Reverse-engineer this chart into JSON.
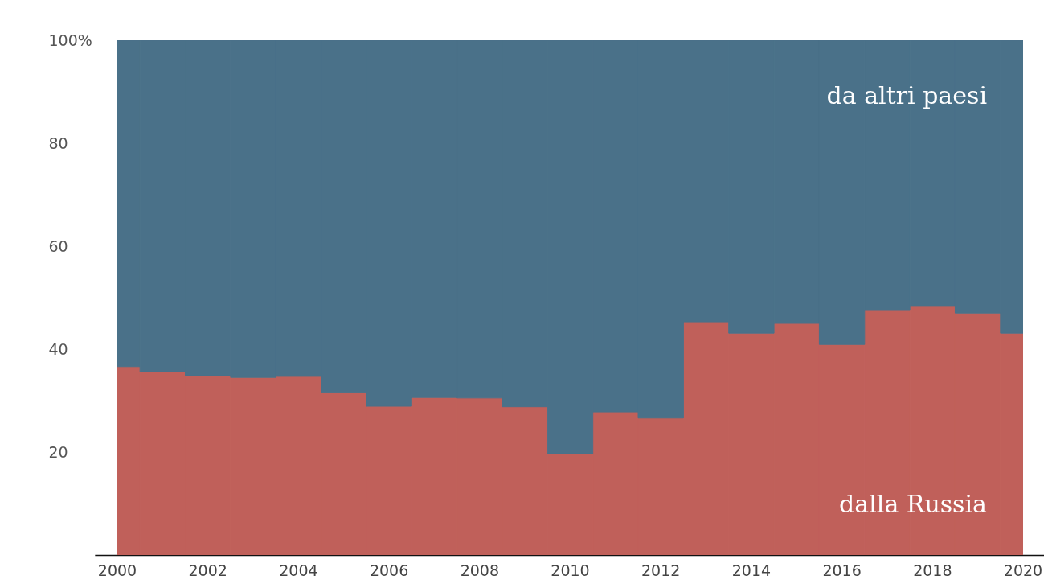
{
  "chart_data": {
    "type": "bar",
    "stacked": true,
    "categories": [
      "2000",
      null,
      "2002",
      null,
      "2004",
      null,
      "2006",
      null,
      "2008",
      null,
      "2010",
      null,
      "2012",
      null,
      "2014",
      null,
      "2016",
      null,
      "2018",
      null,
      "2020"
    ],
    "series": [
      {
        "name": "dalla Russia",
        "color": "#c0605a",
        "values": [
          36.6,
          35.6,
          34.8,
          34.5,
          34.7,
          31.6,
          28.9,
          30.6,
          30.5,
          28.8,
          19.7,
          27.8,
          26.6,
          45.3,
          43.1,
          45.0,
          40.9,
          47.5,
          48.3,
          47.0,
          43.1
        ]
      },
      {
        "name": "da altri paesi",
        "color": "#4a7189",
        "values": [
          63.4,
          64.4,
          65.2,
          65.5,
          65.3,
          68.4,
          71.1,
          69.4,
          69.5,
          71.2,
          80.3,
          72.2,
          73.4,
          54.7,
          56.9,
          55.0,
          59.1,
          52.5,
          51.7,
          53.0,
          56.9
        ]
      }
    ],
    "ylim": [
      0,
      100
    ],
    "yticks": [
      20,
      40,
      60,
      80,
      {
        "value": 100,
        "label": "100%"
      }
    ],
    "legend": false
  }
}
